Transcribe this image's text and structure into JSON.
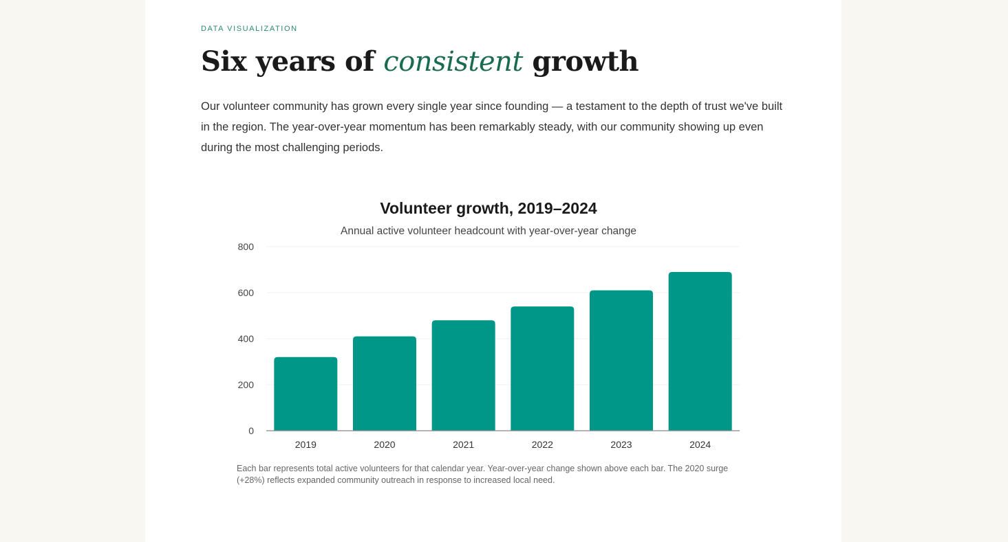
{
  "section": {
    "eyebrow": "DATA VISUALIZATION",
    "title_before": "Six years of ",
    "title_emphasis": "consistent",
    "title_after": " growth",
    "intro": "Our volunteer community has grown every single year since founding — a testament to the depth of trust we've built in the region. The year-over-year momentum has been remarkably steady, with our community showing up even during the most challenging periods."
  },
  "chart_data": {
    "type": "bar",
    "title": "Volunteer growth, 2019–2024",
    "subtitle": "Annual active volunteer headcount with year-over-year change",
    "categories": [
      "2019",
      "2020",
      "2021",
      "2022",
      "2023",
      "2024"
    ],
    "values": [
      320,
      410,
      480,
      540,
      610,
      690
    ],
    "ylim": [
      0,
      800
    ],
    "yticks": [
      0,
      200,
      400,
      600,
      800
    ],
    "grid": true,
    "bar_color": "#009688",
    "caption": "Each bar represents total active volunteers for that calendar year. Year-over-year change shown above each bar. The 2020 surge (+28%) reflects expanded community outreach in response to increased local need."
  }
}
